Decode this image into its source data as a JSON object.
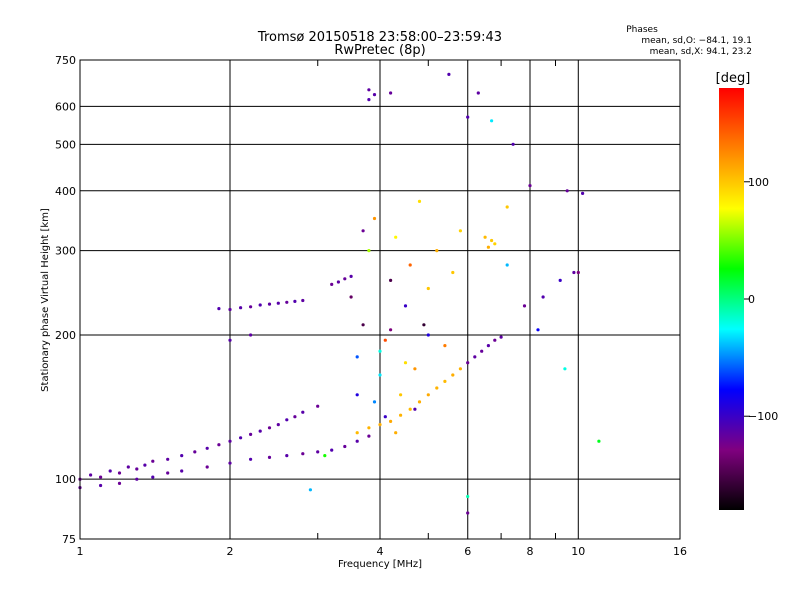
{
  "chart_data": {
    "type": "scatter",
    "title": "Tromsø 20150518 23:58:00–23:59:43",
    "subtitle": "RwPretec (8p)",
    "xlabel": "Frequency [MHz]",
    "ylabel": "Stationary phase Virtual Height [km]",
    "x_scale": "log",
    "y_scale": "log",
    "xlim": [
      1,
      16
    ],
    "ylim": [
      75,
      750
    ],
    "x_ticks": [
      1,
      2,
      4,
      6,
      8,
      10,
      16
    ],
    "x_minor_ticks": [
      3,
      5,
      7,
      9
    ],
    "y_ticks": [
      75,
      100,
      200,
      300,
      400,
      500,
      600,
      750
    ],
    "grid": true,
    "info": {
      "heading": "Phases",
      "line_o": "mean, sd,O: −84.1, 19.1",
      "line_x": "mean, sd,X:  94.1, 23.2"
    },
    "colorbar": {
      "label": "[deg]",
      "range": [
        -180,
        180
      ],
      "ticks": [
        100,
        0,
        -100
      ],
      "tick_labels": [
        "100",
        "0",
        "−100"
      ],
      "colors": [
        "#ff0000",
        "#ff8000",
        "#ffff00",
        "#00ff00",
        "#00ffff",
        "#0000ff",
        "#800080",
        "#000000"
      ]
    },
    "series": [
      {
        "values": [
          [
            1.0,
            100,
            -120
          ],
          [
            1.05,
            102,
            -115
          ],
          [
            1.1,
            101,
            -120
          ],
          [
            1.15,
            104,
            -110
          ],
          [
            1.2,
            103,
            -120
          ],
          [
            1.25,
            106,
            -115
          ],
          [
            1.3,
            105,
            -118
          ],
          [
            1.35,
            107,
            -112
          ],
          [
            1.4,
            109,
            -120
          ],
          [
            1.5,
            110,
            -115
          ],
          [
            1.6,
            112,
            -110
          ],
          [
            1.7,
            114,
            -118
          ],
          [
            1.8,
            116,
            -112
          ],
          [
            1.9,
            118,
            -120
          ],
          [
            2.0,
            120,
            -115
          ],
          [
            2.1,
            122,
            -110
          ],
          [
            2.2,
            124,
            -118
          ],
          [
            2.3,
            126,
            -112
          ],
          [
            2.4,
            128,
            -120
          ],
          [
            2.5,
            130,
            -115
          ],
          [
            2.6,
            133,
            -110
          ],
          [
            2.7,
            135,
            -118
          ],
          [
            2.8,
            138,
            -112
          ],
          [
            3.0,
            142,
            -120
          ],
          [
            1.9,
            227,
            -110
          ],
          [
            2.0,
            226,
            -115
          ],
          [
            2.1,
            228,
            -112
          ],
          [
            2.2,
            229,
            -118
          ],
          [
            2.3,
            231,
            -110
          ],
          [
            2.4,
            232,
            -115
          ],
          [
            2.5,
            233,
            -112
          ],
          [
            2.6,
            234,
            -118
          ],
          [
            2.7,
            235,
            -110
          ],
          [
            2.8,
            236,
            -115
          ],
          [
            3.2,
            255,
            -120
          ],
          [
            3.3,
            258,
            -115
          ],
          [
            3.4,
            262,
            -118
          ],
          [
            3.5,
            265,
            -112
          ],
          [
            1.0,
            96,
            -118
          ],
          [
            1.1,
            97,
            -112
          ],
          [
            1.2,
            98,
            -120
          ],
          [
            1.3,
            100,
            -115
          ],
          [
            1.4,
            101,
            -110
          ],
          [
            1.5,
            103,
            -118
          ],
          [
            1.6,
            104,
            -112
          ],
          [
            1.8,
            106,
            -120
          ],
          [
            2.0,
            108,
            -115
          ],
          [
            2.2,
            110,
            -110
          ],
          [
            2.4,
            111,
            -118
          ],
          [
            2.6,
            112,
            -112
          ],
          [
            2.8,
            113,
            -120
          ],
          [
            3.0,
            114,
            -115
          ],
          [
            3.2,
            115,
            -110
          ],
          [
            3.4,
            117,
            -118
          ],
          [
            3.6,
            120,
            -112
          ],
          [
            3.8,
            123,
            -120
          ],
          [
            3.8,
            620,
            -110
          ],
          [
            3.8,
            650,
            -115
          ],
          [
            3.9,
            635,
            -112
          ],
          [
            4.2,
            640,
            -118
          ],
          [
            3.6,
            180,
            -60
          ],
          [
            3.7,
            210,
            -150
          ],
          [
            3.8,
            300,
            60
          ],
          [
            3.9,
            350,
            120
          ],
          [
            4.0,
            165,
            -30
          ],
          [
            4.1,
            195,
            150
          ],
          [
            4.2,
            260,
            -150
          ],
          [
            4.3,
            320,
            80
          ],
          [
            4.4,
            150,
            100
          ],
          [
            4.5,
            230,
            -100
          ],
          [
            4.6,
            280,
            140
          ],
          [
            4.7,
            170,
            120
          ],
          [
            4.8,
            380,
            90
          ],
          [
            4.9,
            210,
            -160
          ],
          [
            5.0,
            250,
            100
          ],
          [
            5.2,
            300,
            110
          ],
          [
            5.4,
            190,
            130
          ],
          [
            5.6,
            270,
            100
          ],
          [
            5.8,
            330,
            95
          ],
          [
            3.5,
            240,
            -140
          ],
          [
            3.6,
            150,
            -90
          ],
          [
            3.7,
            330,
            -120
          ],
          [
            3.9,
            145,
            -50
          ],
          [
            4.0,
            185,
            -20
          ],
          [
            4.1,
            135,
            -100
          ],
          [
            4.2,
            205,
            -130
          ],
          [
            4.3,
            125,
            110
          ],
          [
            4.5,
            175,
            90
          ],
          [
            4.7,
            140,
            -110
          ],
          [
            5.0,
            200,
            -90
          ],
          [
            3.6,
            125,
            105
          ],
          [
            3.8,
            128,
            108
          ],
          [
            4.0,
            130,
            110
          ],
          [
            4.2,
            132,
            112
          ],
          [
            4.4,
            136,
            108
          ],
          [
            4.6,
            140,
            105
          ],
          [
            4.8,
            145,
            110
          ],
          [
            5.0,
            150,
            112
          ],
          [
            5.2,
            155,
            108
          ],
          [
            5.4,
            160,
            105
          ],
          [
            5.6,
            165,
            110
          ],
          [
            5.8,
            170,
            108
          ],
          [
            6.0,
            175,
            -120
          ],
          [
            6.2,
            180,
            -115
          ],
          [
            6.4,
            185,
            -118
          ],
          [
            6.6,
            190,
            -112
          ],
          [
            6.8,
            195,
            -120
          ],
          [
            7.0,
            198,
            -115
          ],
          [
            6.5,
            320,
            105
          ],
          [
            6.7,
            315,
            100
          ],
          [
            6.6,
            305,
            110
          ],
          [
            6.8,
            310,
            95
          ],
          [
            6.0,
            570,
            -110
          ],
          [
            6.3,
            640,
            -115
          ],
          [
            6.7,
            560,
            -30
          ],
          [
            7.2,
            280,
            -40
          ],
          [
            7.8,
            230,
            -120
          ],
          [
            8.5,
            240,
            -110
          ],
          [
            9.2,
            260,
            -100
          ],
          [
            9.8,
            270,
            -115
          ],
          [
            10.0,
            270,
            -130
          ],
          [
            9.5,
            400,
            -118
          ],
          [
            10.2,
            395,
            -110
          ],
          [
            8.0,
            410,
            -120
          ],
          [
            7.4,
            500,
            -110
          ],
          [
            5.5,
            700,
            -110
          ],
          [
            7.2,
            370,
            100
          ],
          [
            11.0,
            120,
            20
          ],
          [
            6.0,
            85,
            -120
          ],
          [
            6.0,
            92,
            -10
          ],
          [
            8.3,
            205,
            -80
          ],
          [
            9.4,
            170,
            -20
          ],
          [
            2.9,
            95,
            -40
          ],
          [
            3.1,
            112,
            30
          ],
          [
            2.2,
            200,
            -115
          ],
          [
            2.0,
            195,
            -112
          ]
        ]
      }
    ]
  }
}
